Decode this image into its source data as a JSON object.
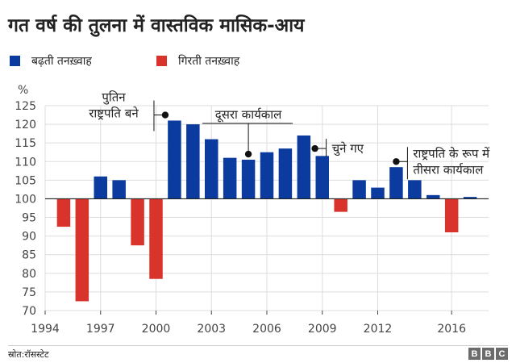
{
  "title": "गत वर्ष की तुलना में वास्तविक मासिक-आय",
  "legend": [
    {
      "label": "बढ़ती तनख़्वाह",
      "color": "#0b3b9e"
    },
    {
      "label": "गिरती तनख़्वाह",
      "color": "#d9342b"
    }
  ],
  "source": "स्रोत:रॉसस्टेट",
  "brand": [
    "B",
    "B",
    "C"
  ],
  "chart_data": {
    "type": "bar",
    "ylabel": "%",
    "baseline": 100,
    "ylim": [
      70,
      125
    ],
    "yticks": [
      70,
      75,
      80,
      85,
      90,
      95,
      100,
      105,
      110,
      115,
      120,
      125
    ],
    "xlim": [
      1994,
      2018
    ],
    "xticks": [
      1994,
      1997,
      2000,
      2003,
      2006,
      2009,
      2012,
      2016
    ],
    "grid": true,
    "x": [
      1995,
      1996,
      1997,
      1998,
      1999,
      2000,
      2001,
      2002,
      2003,
      2004,
      2005,
      2006,
      2007,
      2008,
      2009,
      2010,
      2011,
      2012,
      2013,
      2014,
      2015,
      2016,
      2017
    ],
    "values": [
      92.5,
      72.5,
      106,
      105,
      87.5,
      78.5,
      121,
      120,
      116,
      111,
      110.5,
      112.5,
      113.5,
      117,
      111.5,
      96.5,
      105,
      103,
      108.5,
      105,
      101,
      91,
      100.5
    ],
    "colors": {
      "positive": "#0b3b9e",
      "negative": "#d9342b"
    },
    "annotations": [
      {
        "lines": [
          "पुतिन",
          "राष्ट्रपति बने"
        ],
        "x": 2000.5,
        "y": 122.5,
        "side": "left"
      },
      {
        "lines": [
          "दूसरा कार्यकाल"
        ],
        "x": 2005,
        "y": 112,
        "side": "top"
      },
      {
        "lines": [
          "चुने गए"
        ],
        "x": 2008.6,
        "y": 113.5,
        "side": "right"
      },
      {
        "lines": [
          "राष्ट्रपति के रूप में",
          "तीसरा कार्यकाल"
        ],
        "x": 2013,
        "y": 110,
        "side": "right"
      }
    ]
  }
}
